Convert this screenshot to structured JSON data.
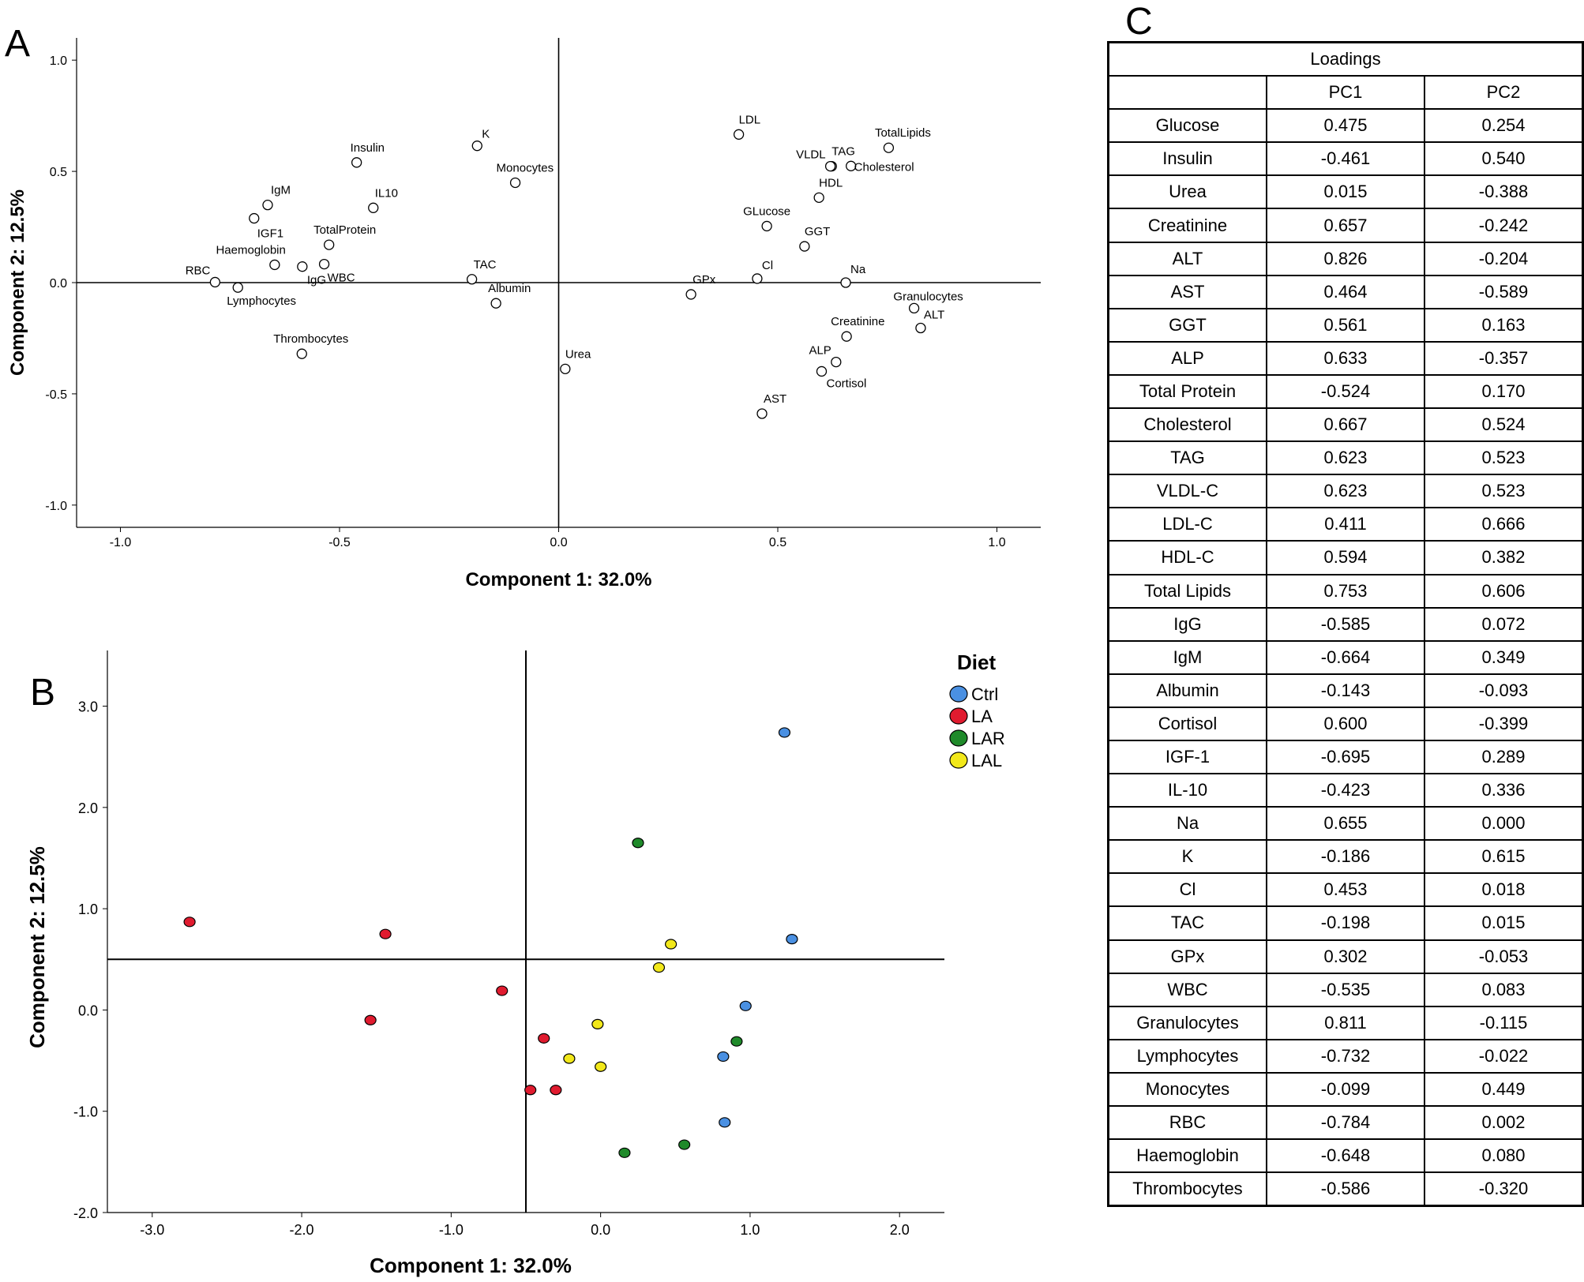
{
  "panel_labels": {
    "a": "A",
    "b": "B",
    "c": "C"
  },
  "chart_data": [
    {
      "type": "scatter",
      "panel": "A",
      "xlabel": "Component 1: 32.0%",
      "ylabel": "Component 2: 12.5%",
      "xlim": [
        -1.1,
        1.1
      ],
      "ylim": [
        -1.1,
        1.1
      ],
      "xticks": [
        "-1.0",
        "-0.5",
        "0.0",
        "0.5",
        "1.0"
      ],
      "xtick_values": [
        -1.0,
        -0.5,
        0.0,
        0.5,
        1.0
      ],
      "yticks": [
        "1.0",
        "0.5",
        "0.0",
        "-0.5",
        "-1.0"
      ],
      "ytick_values": [
        1.0,
        0.5,
        0.0,
        -0.5,
        -1.0
      ],
      "points": [
        {
          "label": "Glucose",
          "text": "GLucose",
          "x": 0.475,
          "y": 0.254,
          "anchor": "middle",
          "dx": 0,
          "dy": -14
        },
        {
          "label": "Insulin",
          "text": "Insulin",
          "x": -0.461,
          "y": 0.54,
          "anchor": "start",
          "dx": -8,
          "dy": -14
        },
        {
          "label": "Urea",
          "text": "Urea",
          "x": 0.015,
          "y": -0.388,
          "anchor": "start",
          "dx": 0,
          "dy": -14
        },
        {
          "label": "Creatinine",
          "text": "Creatinine",
          "x": 0.657,
          "y": -0.242,
          "anchor": "start",
          "dx": -20,
          "dy": -14
        },
        {
          "label": "ALT",
          "text": "ALT",
          "x": 0.826,
          "y": -0.204,
          "anchor": "start",
          "dx": 4,
          "dy": -12
        },
        {
          "label": "AST",
          "text": "AST",
          "x": 0.464,
          "y": -0.589,
          "anchor": "start",
          "dx": 2,
          "dy": -14
        },
        {
          "label": "GGT",
          "text": "GGT",
          "x": 0.561,
          "y": 0.163,
          "anchor": "start",
          "dx": 0,
          "dy": -14
        },
        {
          "label": "ALP",
          "text": "ALP",
          "x": 0.633,
          "y": -0.357,
          "anchor": "end",
          "dx": -6,
          "dy": -10
        },
        {
          "label": "TotalProtein",
          "text": "TotalProtein",
          "x": -0.524,
          "y": 0.17,
          "anchor": "middle",
          "dx": 20,
          "dy": -14
        },
        {
          "label": "Cholesterol",
          "text": "Cholesterol",
          "x": 0.667,
          "y": 0.524,
          "anchor": "start",
          "dx": 4,
          "dy": 6
        },
        {
          "label": "TAG",
          "text": "TAG",
          "x": 0.623,
          "y": 0.523,
          "anchor": "start",
          "dx": 0,
          "dy": -14
        },
        {
          "label": "VLDL",
          "text": "VLDL",
          "x": 0.62,
          "y": 0.523,
          "anchor": "end",
          "dx": -6,
          "dy": -10
        },
        {
          "label": "LDL",
          "text": "LDL",
          "x": 0.411,
          "y": 0.666,
          "anchor": "start",
          "dx": 0,
          "dy": -14
        },
        {
          "label": "HDL",
          "text": "HDL",
          "x": 0.594,
          "y": 0.382,
          "anchor": "start",
          "dx": 0,
          "dy": -14
        },
        {
          "label": "TotalLipids",
          "text": "TotalLipids",
          "x": 0.753,
          "y": 0.606,
          "anchor": "middle",
          "dx": 18,
          "dy": -14
        },
        {
          "label": "IgG",
          "text": "IgG",
          "x": -0.585,
          "y": 0.072,
          "anchor": "start",
          "dx": 6,
          "dy": 22
        },
        {
          "label": "IgM",
          "text": "IgM",
          "x": -0.664,
          "y": 0.349,
          "anchor": "start",
          "dx": 4,
          "dy": -14
        },
        {
          "label": "Albumin",
          "text": "Albumin",
          "x": -0.143,
          "y": -0.093,
          "anchor": "start",
          "dx": -10,
          "dy": -14
        },
        {
          "label": "Cortisol",
          "text": "Cortisol",
          "x": 0.6,
          "y": -0.399,
          "anchor": "start",
          "dx": 6,
          "dy": 20
        },
        {
          "label": "IGF1",
          "text": "IGF1",
          "x": -0.695,
          "y": 0.289,
          "anchor": "start",
          "dx": 4,
          "dy": 24
        },
        {
          "label": "IL10",
          "text": "IL10",
          "x": -0.423,
          "y": 0.336,
          "anchor": "start",
          "dx": 2,
          "dy": -14
        },
        {
          "label": "Na",
          "text": "Na",
          "x": 0.655,
          "y": 0.0,
          "anchor": "start",
          "dx": 6,
          "dy": -12
        },
        {
          "label": "K",
          "text": "K",
          "x": -0.186,
          "y": 0.615,
          "anchor": "start",
          "dx": 6,
          "dy": -10
        },
        {
          "label": "Cl",
          "text": "Cl",
          "x": 0.453,
          "y": 0.018,
          "anchor": "start",
          "dx": 6,
          "dy": -12
        },
        {
          "label": "TAC",
          "text": "TAC",
          "x": -0.198,
          "y": 0.015,
          "anchor": "start",
          "dx": 2,
          "dy": -14
        },
        {
          "label": "GPx",
          "text": "GPx",
          "x": 0.302,
          "y": -0.053,
          "anchor": "start",
          "dx": 2,
          "dy": -14
        },
        {
          "label": "WBC",
          "text": "WBC",
          "x": -0.535,
          "y": 0.083,
          "anchor": "start",
          "dx": 4,
          "dy": 22
        },
        {
          "label": "Granulocytes",
          "text": "Granulocytes",
          "x": 0.811,
          "y": -0.115,
          "anchor": "middle",
          "dx": 18,
          "dy": -10
        },
        {
          "label": "Lymphocytes",
          "text": "Lymphocytes",
          "x": -0.732,
          "y": -0.022,
          "anchor": "start",
          "dx": -14,
          "dy": 22
        },
        {
          "label": "Monocytes",
          "text": "Monocytes",
          "x": -0.099,
          "y": 0.449,
          "anchor": "start",
          "dx": -24,
          "dy": -14
        },
        {
          "label": "RBC",
          "text": "RBC",
          "x": -0.784,
          "y": 0.002,
          "anchor": "end",
          "dx": -6,
          "dy": -10
        },
        {
          "label": "Haemoglobin",
          "text": "Haemoglobin",
          "x": -0.648,
          "y": 0.08,
          "anchor": "end",
          "dx": 14,
          "dy": -14
        },
        {
          "label": "Thrombocytes",
          "text": "Thrombocytes",
          "x": -0.586,
          "y": -0.32,
          "anchor": "start",
          "dx": -36,
          "dy": -14
        }
      ]
    },
    {
      "type": "scatter",
      "panel": "B",
      "xlabel": "Component 1: 32.0%",
      "ylabel": "Component 2: 12.5%",
      "xlim": [
        -3.3,
        2.3
      ],
      "ylim": [
        -2.0,
        3.55
      ],
      "xticks": [
        "-3.0",
        "-2.0",
        "-1.0",
        "0.0",
        "1.0",
        "2.0"
      ],
      "xtick_values": [
        -3.0,
        -2.0,
        -1.0,
        0.0,
        1.0,
        2.0
      ],
      "yticks": [
        "3.0",
        "2.0",
        "1.0",
        "0.0",
        "-1.0",
        "-2.0"
      ],
      "ytick_values": [
        3.0,
        2.0,
        1.0,
        0.0,
        -1.0,
        -2.0
      ],
      "ref_lines": {
        "x": -0.5,
        "y": 0.5
      },
      "legend": {
        "title": "Diet",
        "position": "top-right"
      },
      "series": [
        {
          "name": "Ctrl",
          "color": "#4a90e2",
          "points": [
            [
              1.23,
              2.74
            ],
            [
              1.28,
              0.7
            ],
            [
              0.97,
              0.04
            ],
            [
              0.82,
              -0.46
            ],
            [
              0.83,
              -1.11
            ]
          ]
        },
        {
          "name": "LA",
          "color": "#e01b2f",
          "points": [
            [
              -2.75,
              0.87
            ],
            [
              -1.44,
              0.75
            ],
            [
              -0.66,
              0.19
            ],
            [
              -1.54,
              -0.1
            ],
            [
              -0.38,
              -0.28
            ],
            [
              -0.47,
              -0.79
            ],
            [
              -0.3,
              -0.79
            ]
          ]
        },
        {
          "name": "LAR",
          "color": "#1f8a2a",
          "points": [
            [
              0.25,
              1.65
            ],
            [
              0.91,
              -0.31
            ],
            [
              0.56,
              -1.33
            ],
            [
              0.16,
              -1.41
            ]
          ]
        },
        {
          "name": "LAL",
          "color": "#f2e81a",
          "points": [
            [
              0.47,
              0.65
            ],
            [
              0.39,
              0.42
            ],
            [
              -0.02,
              -0.14
            ],
            [
              -0.21,
              -0.48
            ],
            [
              0.0,
              -0.56
            ]
          ]
        }
      ]
    },
    {
      "type": "table",
      "panel": "C",
      "title": "Loadings",
      "columns": [
        "",
        "PC1",
        "PC2"
      ],
      "rows": [
        [
          "Glucose",
          "0.475",
          "0.254"
        ],
        [
          "Insulin",
          "-0.461",
          "0.540"
        ],
        [
          "Urea",
          "0.015",
          "-0.388"
        ],
        [
          "Creatinine",
          "0.657",
          "-0.242"
        ],
        [
          "ALT",
          "0.826",
          "-0.204"
        ],
        [
          "AST",
          "0.464",
          "-0.589"
        ],
        [
          "GGT",
          "0.561",
          "0.163"
        ],
        [
          "ALP",
          "0.633",
          "-0.357"
        ],
        [
          "Total Protein",
          "-0.524",
          "0.170"
        ],
        [
          "Cholesterol",
          "0.667",
          "0.524"
        ],
        [
          "TAG",
          "0.623",
          "0.523"
        ],
        [
          "VLDL-C",
          "0.623",
          "0.523"
        ],
        [
          "LDL-C",
          "0.411",
          "0.666"
        ],
        [
          "HDL-C",
          "0.594",
          "0.382"
        ],
        [
          "Total Lipids",
          "0.753",
          "0.606"
        ],
        [
          "IgG",
          "-0.585",
          "0.072"
        ],
        [
          "IgM",
          "-0.664",
          "0.349"
        ],
        [
          "Albumin",
          "-0.143",
          "-0.093"
        ],
        [
          "Cortisol",
          "0.600",
          "-0.399"
        ],
        [
          "IGF-1",
          "-0.695",
          "0.289"
        ],
        [
          "IL-10",
          "-0.423",
          "0.336"
        ],
        [
          "Na",
          "0.655",
          "0.000"
        ],
        [
          "K",
          "-0.186",
          "0.615"
        ],
        [
          "Cl",
          "0.453",
          "0.018"
        ],
        [
          "TAC",
          "-0.198",
          "0.015"
        ],
        [
          "GPx",
          "0.302",
          "-0.053"
        ],
        [
          "WBC",
          "-0.535",
          "0.083"
        ],
        [
          "Granulocytes",
          "0.811",
          "-0.115"
        ],
        [
          "Lymphocytes",
          "-0.732",
          "-0.022"
        ],
        [
          "Monocytes",
          "-0.099",
          "0.449"
        ],
        [
          "RBC",
          "-0.784",
          "0.002"
        ],
        [
          "Haemoglobin",
          "-0.648",
          "0.080"
        ],
        [
          "Thrombocytes",
          "-0.586",
          "-0.320"
        ]
      ]
    }
  ]
}
